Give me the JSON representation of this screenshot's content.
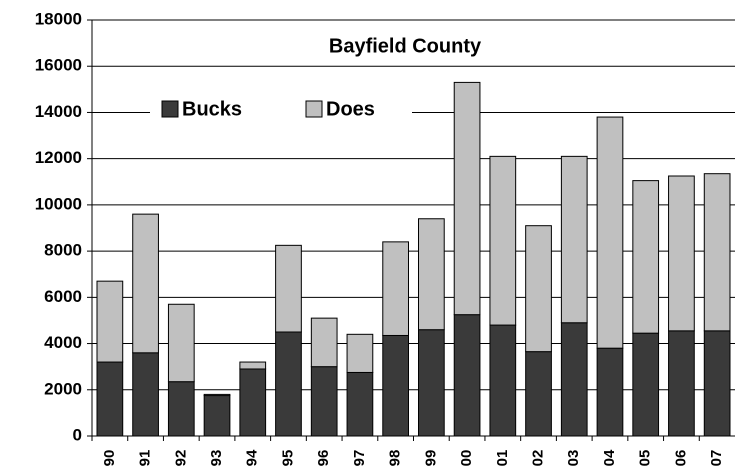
{
  "chart_data": {
    "type": "stacked_bar",
    "title": "Bayfield County",
    "categories": [
      "90",
      "91",
      "92",
      "93",
      "94",
      "95",
      "96",
      "97",
      "98",
      "99",
      "00",
      "01",
      "02",
      "03",
      "04",
      "05",
      "06",
      "07"
    ],
    "series": [
      {
        "name": "Bucks",
        "color": "#3a3a3a",
        "values": [
          3200,
          3600,
          2350,
          1750,
          2900,
          4500,
          3000,
          2750,
          4350,
          4600,
          5250,
          4800,
          3650,
          4900,
          3800,
          4450,
          4550,
          4550
        ]
      },
      {
        "name": "Does",
        "color": "#c0c0c0",
        "values": [
          3500,
          6000,
          3350,
          50,
          300,
          3750,
          2100,
          1650,
          4050,
          4800,
          10050,
          7300,
          5450,
          7200,
          10000,
          6600,
          6700,
          6800
        ]
      }
    ],
    "ylim": [
      0,
      18000
    ],
    "yticks": [
      0,
      2000,
      4000,
      6000,
      8000,
      10000,
      12000,
      14000,
      16000,
      18000
    ],
    "grid": true
  }
}
